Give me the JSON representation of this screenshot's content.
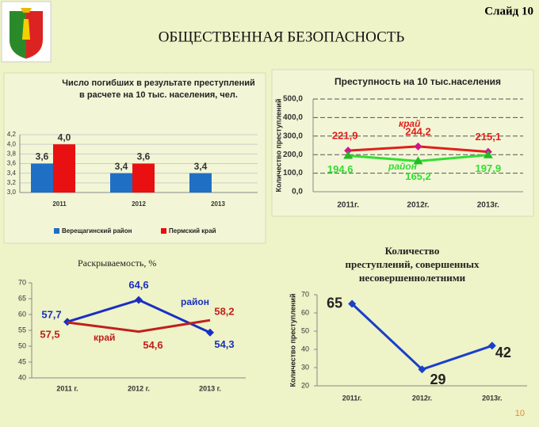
{
  "slide": {
    "label": "Слайд 10",
    "title": "ОБЩЕСТВЕННАЯ БЕЗОПАСНОСТЬ",
    "page_number": "10"
  },
  "chart_data": [
    {
      "type": "bar",
      "title": [
        "Число погибших в результате преступлений",
        "в расчете на 10 тыс. населения, чел."
      ],
      "categories": [
        "2011",
        "2012",
        "2013"
      ],
      "series": [
        {
          "name": "Верещагинский район",
          "color": "#1f6fc5",
          "values": [
            3.6,
            3.4,
            3.4
          ],
          "value_labels": [
            "3,6",
            "3,4",
            "3,4"
          ]
        },
        {
          "name": "Пермский край",
          "color": "#e81010",
          "values": [
            4.0,
            3.6,
            null
          ],
          "value_labels": [
            "4,0",
            "3,6",
            null
          ]
        }
      ],
      "ylim": [
        3.0,
        4.2
      ],
      "yticks": [
        {
          "value": 3.0,
          "label": "3,0"
        },
        {
          "value": 3.2,
          "label": "3,2"
        },
        {
          "value": 3.4,
          "label": "3,4"
        },
        {
          "value": 3.6,
          "label": "3,6"
        },
        {
          "value": 3.8,
          "label": "3,8"
        },
        {
          "value": 4.0,
          "label": "4,0"
        },
        {
          "value": 4.2,
          "label": "4,2"
        }
      ],
      "grid": true,
      "legend": "bottom"
    },
    {
      "type": "line",
      "title": [
        "Преступность на 10 тыс.населения"
      ],
      "ylabel": "Количество преступлений",
      "categories": [
        "2011г.",
        "2012г.",
        "2013г."
      ],
      "series": [
        {
          "name": "край",
          "color": "#e0201c",
          "marker_color": "#d0168c",
          "marker": "diamond",
          "values": [
            221.9,
            244.2,
            215.1
          ],
          "value_labels": [
            "221,9",
            "244,2",
            "215,1"
          ]
        },
        {
          "name": "район",
          "color": "#33dd33",
          "marker_color": "#22bb22",
          "marker": "triangle",
          "values": [
            194.6,
            165.2,
            197.9
          ],
          "value_labels": [
            "194,6",
            "165,2",
            "197,9"
          ]
        }
      ],
      "ylim": [
        0,
        500
      ],
      "yticks": [
        {
          "value": 0,
          "label": "0,0"
        },
        {
          "value": 100,
          "label": "100,0"
        },
        {
          "value": 200,
          "label": "200,0"
        },
        {
          "value": 300,
          "label": "300,0"
        },
        {
          "value": 400,
          "label": "400,0"
        },
        {
          "value": 500,
          "label": "500,0"
        }
      ],
      "grid": true,
      "grid_style": "dashed"
    },
    {
      "type": "line",
      "title": [
        "Раскрываемость, %"
      ],
      "categories": [
        "2011 г.",
        "2012 г.",
        "2013 г."
      ],
      "series": [
        {
          "name": "район",
          "color": "#1a2fc0",
          "marker_color": "#1a2fc0",
          "marker": "diamond",
          "values": [
            57.7,
            64.6,
            54.3
          ],
          "value_labels": [
            "57,7",
            "64,6",
            "54,3"
          ]
        },
        {
          "name": "край",
          "color": "#c0201c",
          "marker_color": "#c0201c",
          "marker": "none",
          "values": [
            57.5,
            54.6,
            58.2
          ],
          "value_labels": [
            "57,5",
            "54,6",
            "58,2"
          ]
        }
      ],
      "ylim": [
        40,
        70
      ],
      "yticks": [
        40,
        45,
        50,
        55,
        60,
        65,
        70
      ],
      "grid": false
    },
    {
      "type": "line",
      "title": [
        "Количество",
        "преступлений, совершенных",
        "несовершеннолетними"
      ],
      "ylabel": "Количество преступлений",
      "categories": [
        "2011г.",
        "2012г.",
        "2013г."
      ],
      "series": [
        {
          "color": "#1a3fc8",
          "marker_color": "#1a3fc8",
          "marker": "diamond",
          "values": [
            65,
            29,
            42
          ]
        }
      ],
      "ylim": [
        20,
        70
      ],
      "yticks": [
        20,
        30,
        40,
        50,
        60,
        70
      ],
      "grid": false
    }
  ]
}
